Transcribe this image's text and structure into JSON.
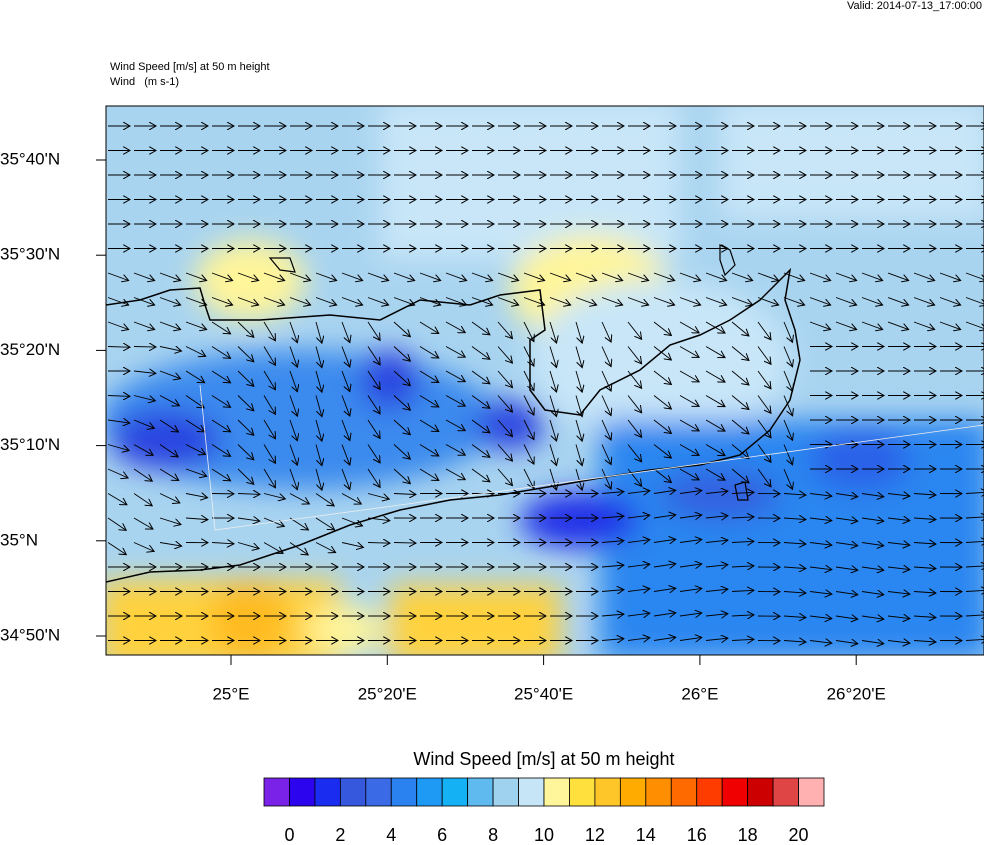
{
  "header": {
    "valid": "Valid: 2014-07-13_17:00:00"
  },
  "plot": {
    "title_lines": [
      "Wind Speed [m/s] at 50 m height",
      "Wind   (m s-1)"
    ],
    "y_labels": [
      "35°40'N",
      "35°30'N",
      "35°20'N",
      "35°10'N",
      "35°N",
      "34°50'N"
    ],
    "x_labels": [
      "25°E",
      "25°20'E",
      "25°40'E",
      "26°E",
      "26°20'E"
    ]
  },
  "colorbar": {
    "title": "Wind Speed [m/s] at 50 m height",
    "labels": [
      "0",
      "2",
      "4",
      "6",
      "8",
      "10",
      "12",
      "14",
      "16",
      "18",
      "20"
    ],
    "colors": [
      "#7a22e8",
      "#2c04ee",
      "#1a2cf0",
      "#3658dc",
      "#3a6ae6",
      "#2a82f0",
      "#1e9af5",
      "#14b2f5",
      "#5fbbef",
      "#9fd2ef",
      "#c6e6f8",
      "#fff59a",
      "#ffe03c",
      "#ffc62a",
      "#ffab00",
      "#ff8e00",
      "#ff6a00",
      "#ff3c00",
      "#f00000",
      "#cc0000",
      "#e04545",
      "#ffb0b0"
    ]
  }
}
